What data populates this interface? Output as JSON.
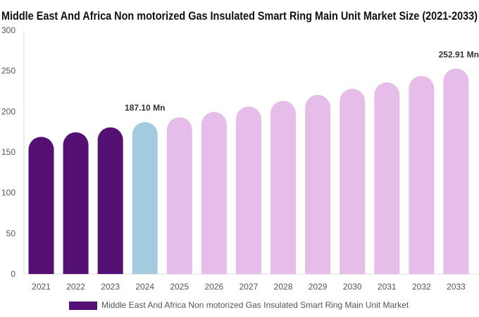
{
  "chart_data": {
    "type": "bar",
    "title": "Middle East And Africa Non motorized Gas Insulated Smart Ring Main Unit Market Size (2021-2033)",
    "categories": [
      "2021",
      "2022",
      "2023",
      "2024",
      "2025",
      "2026",
      "2027",
      "2028",
      "2029",
      "2030",
      "2031",
      "2032",
      "2033"
    ],
    "series": [
      {
        "name": "Middle East And Africa Non motorized Gas Insulated Smart Ring Main Unit Market",
        "values": [
          168.9,
          174.5,
          180.6,
          187.1,
          193.0,
          199.5,
          206.3,
          213.2,
          220.4,
          228.0,
          235.8,
          243.9,
          252.91
        ]
      }
    ],
    "bar_colors": {
      "historical": "#541072",
      "current": "#a3cbe0",
      "forecast": "#e6bde9"
    },
    "color_groups": [
      "historical",
      "historical",
      "historical",
      "current",
      "forecast",
      "forecast",
      "forecast",
      "forecast",
      "forecast",
      "forecast",
      "forecast",
      "forecast",
      "forecast"
    ],
    "data_labels": [
      {
        "index": 3,
        "text": "187.10 Mn"
      },
      {
        "index": 12,
        "text": "252.91 Mn"
      }
    ],
    "yticks": [
      0,
      50,
      100,
      150,
      200,
      250,
      300
    ],
    "ylim": [
      0,
      300
    ],
    "xlabel": "",
    "ylabel": "",
    "grid": false,
    "legend_position": "bottom",
    "legend_color": "#541072"
  }
}
